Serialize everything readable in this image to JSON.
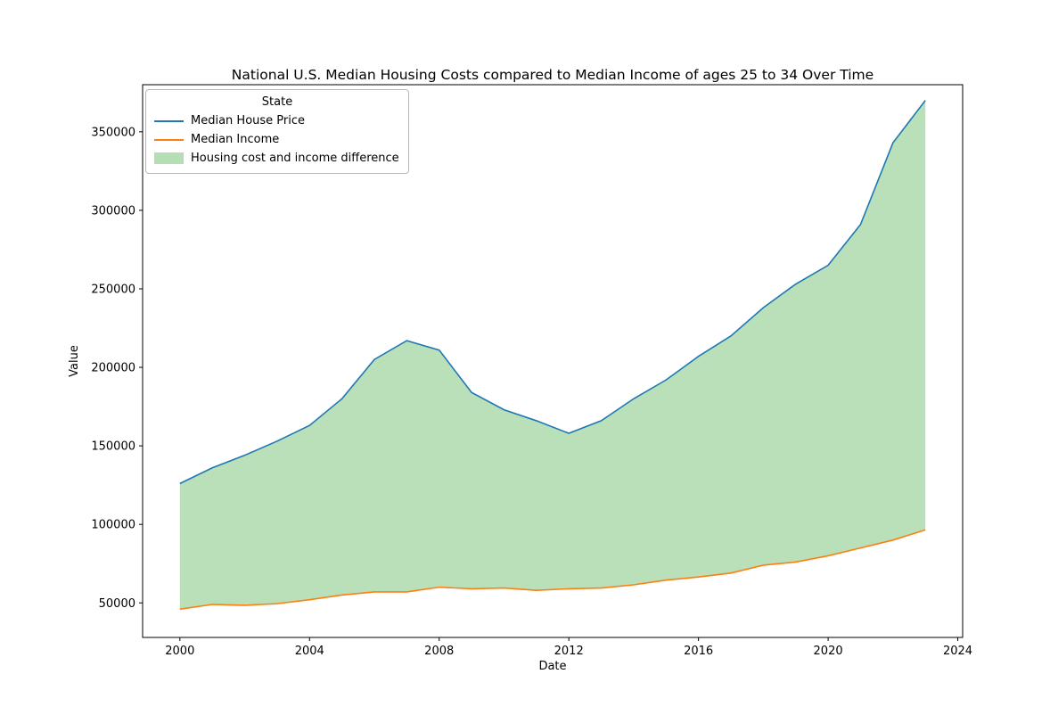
{
  "figure": {
    "title": "National U.S. Median Housing Costs compared to Median Income of ages 25 to 34 Over Time",
    "xlabel": "Date",
    "ylabel": "Value"
  },
  "legend": {
    "title": "State",
    "entries": [
      {
        "label": "Median House Price",
        "type": "line",
        "color": "#1f77b4"
      },
      {
        "label": "Median Income",
        "type": "line",
        "color": "#ff7f0e"
      },
      {
        "label": "Housing cost and income difference",
        "type": "patch",
        "color": "#2ca02c"
      }
    ]
  },
  "chart_data": {
    "type": "line",
    "title": "National U.S. Median Housing Costs compared to Median Income of ages 25 to 34 Over Time",
    "xlabel": "Date",
    "ylabel": "Value",
    "x": [
      2000,
      2001,
      2002,
      2003,
      2004,
      2005,
      2006,
      2007,
      2008,
      2009,
      2010,
      2011,
      2012,
      2013,
      2014,
      2015,
      2016,
      2017,
      2018,
      2019,
      2020,
      2021,
      2022,
      2023
    ],
    "series": [
      {
        "name": "Median House Price",
        "color": "#1f77b4",
        "values": [
          126000,
          136000,
          144000,
          153000,
          163000,
          180000,
          205000,
          217000,
          211000,
          184000,
          173000,
          166000,
          158000,
          166000,
          180000,
          192000,
          207000,
          220000,
          238000,
          253000,
          265000,
          291000,
          343000,
          370000
        ]
      },
      {
        "name": "Median Income",
        "color": "#ff7f0e",
        "values": [
          46000,
          49000,
          48500,
          49500,
          52000,
          55000,
          57000,
          57000,
          60000,
          59000,
          59500,
          58000,
          59000,
          59500,
          61500,
          64500,
          66500,
          69000,
          74000,
          76000,
          80000,
          85000,
          90000,
          96500
        ]
      }
    ],
    "fill_between": {
      "name": "Housing cost and income difference",
      "color": "#2ca02c",
      "opacity": 0.33
    },
    "xlim": [
      1998.85,
      2024.15
    ],
    "ylim": [
      28000,
      380000
    ],
    "xticks": [
      2000,
      2004,
      2008,
      2012,
      2016,
      2020,
      2024
    ],
    "yticks": [
      50000,
      100000,
      150000,
      200000,
      250000,
      300000,
      350000
    ],
    "grid": false,
    "legend_position": "upper left",
    "legend_title": "State"
  }
}
